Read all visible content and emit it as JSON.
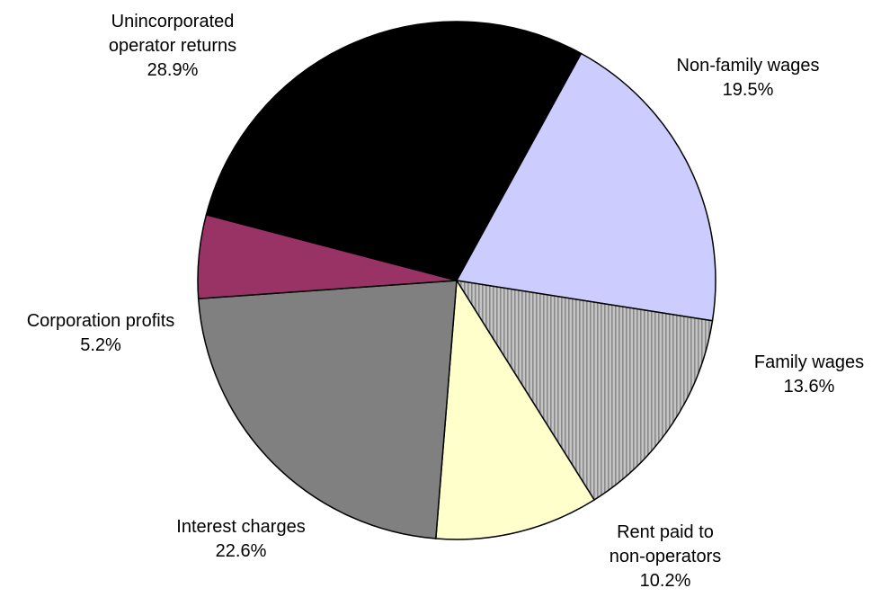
{
  "chart_data": {
    "type": "pie",
    "slices": [
      {
        "label": [
          "Unincorporated",
          "operator returns"
        ],
        "value_label": "28.9%",
        "value": 28.9,
        "color": "#000000",
        "pattern": "none"
      },
      {
        "label": [
          "Non-family wages"
        ],
        "value_label": "19.5%",
        "value": 19.5,
        "color": "#ccccff",
        "pattern": "none"
      },
      {
        "label": [
          "Family wages"
        ],
        "value_label": "13.6%",
        "value": 13.6,
        "color": "#b3b3b3",
        "pattern": "vertical-lines"
      },
      {
        "label": [
          "Rent paid to",
          "non-operators"
        ],
        "value_label": "10.2%",
        "value": 10.2,
        "color": "#ffffcc",
        "pattern": "none"
      },
      {
        "label": [
          "Interest charges"
        ],
        "value_label": "22.6%",
        "value": 22.6,
        "color": "#808080",
        "pattern": "none"
      },
      {
        "label": [
          "Corporation profits"
        ],
        "value_label": "5.2%",
        "value": 5.2,
        "color": "#993366",
        "pattern": "none"
      }
    ]
  }
}
